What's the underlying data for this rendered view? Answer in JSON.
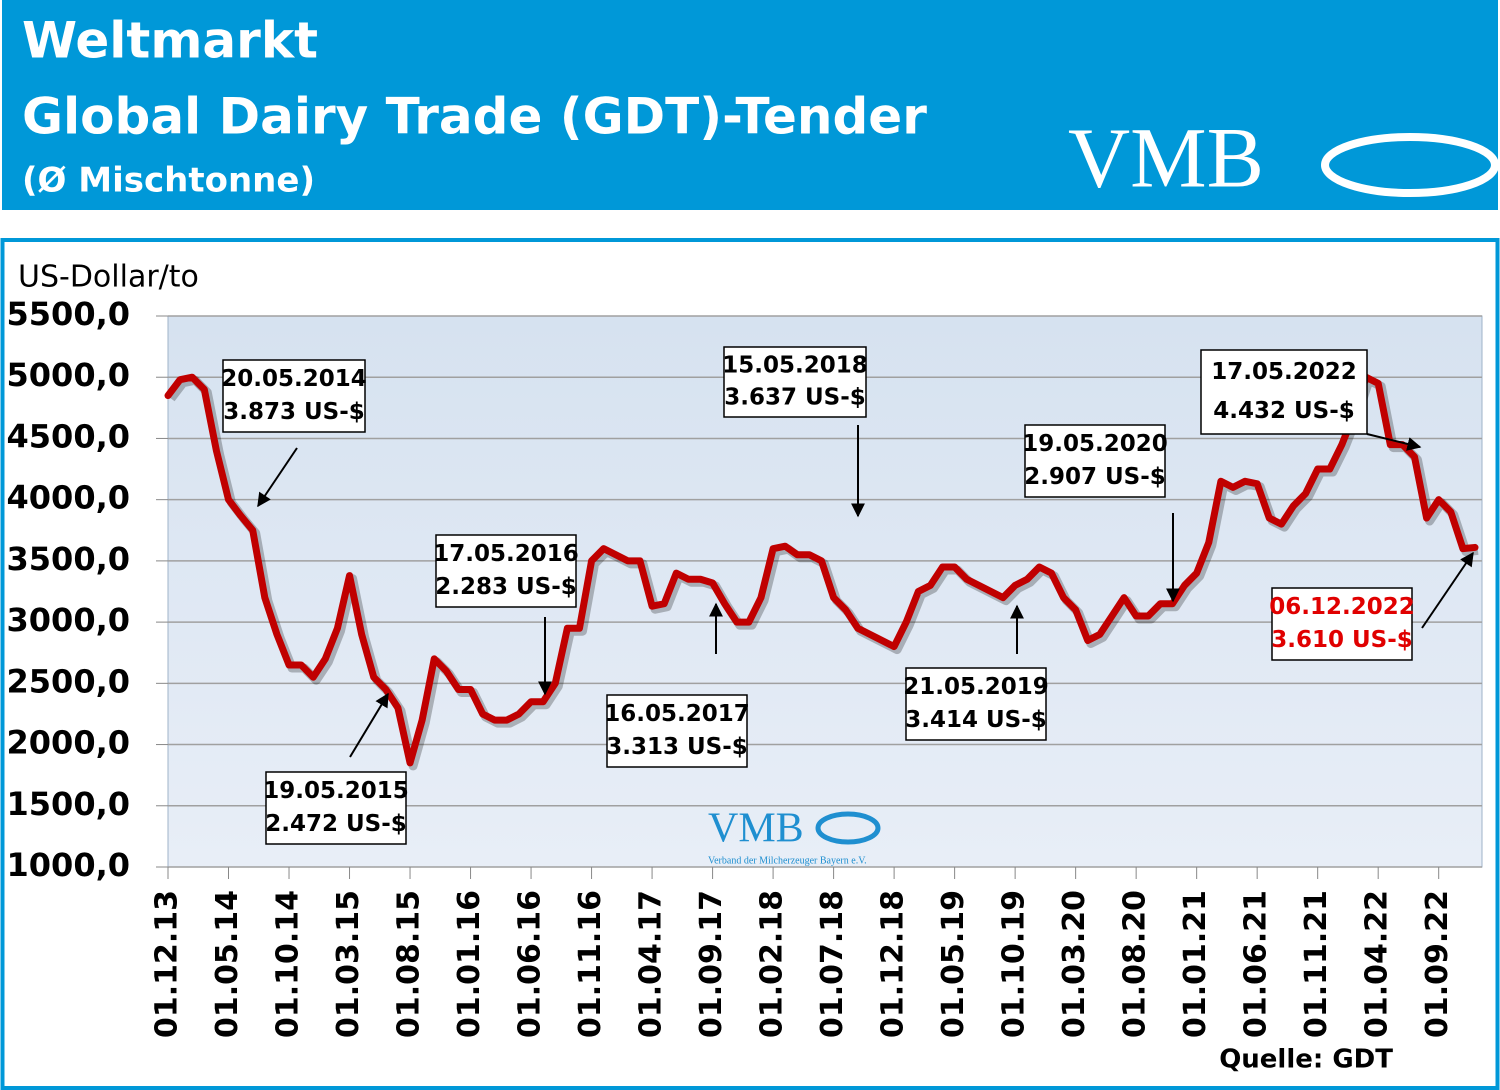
{
  "header": {
    "title": "Weltmarkt",
    "subtitle": "Global Dairy Trade (GDT)-Tender",
    "note": "(Ø Mischtonne)",
    "logo": "VMB"
  },
  "chart_data": {
    "type": "line",
    "y_label": "US-Dollar/to",
    "source": "Quelle: GDT",
    "watermark": {
      "logo": "VMB",
      "text": "Verband der Milcherzeuger Bayern e.V."
    },
    "categories": [
      "01.12.13",
      null,
      null,
      null,
      null,
      "01.05.14",
      null,
      null,
      null,
      null,
      "01.10.14",
      null,
      null,
      null,
      null,
      "01.03.15",
      null,
      null,
      null,
      null,
      "01.08.15",
      null,
      null,
      null,
      null,
      "01.01.16",
      null,
      null,
      null,
      null,
      "01.06.16",
      null,
      null,
      null,
      null,
      "01.11.16",
      null,
      null,
      null,
      null,
      "01.04.17",
      null,
      null,
      null,
      null,
      "01.09.17",
      null,
      null,
      null,
      null,
      "01.02.18",
      null,
      null,
      null,
      null,
      "01.07.18",
      null,
      null,
      null,
      null,
      "01.12.18",
      null,
      null,
      null,
      null,
      "01.05.19",
      null,
      null,
      null,
      null,
      "01.10.19",
      null,
      null,
      null,
      null,
      "01.03.20",
      null,
      null,
      null,
      null,
      "01.08.20",
      null,
      null,
      null,
      null,
      "01.01.21",
      null,
      null,
      null,
      null,
      "01.06.21",
      null,
      null,
      null,
      null,
      "01.11.21",
      null,
      null,
      null,
      null,
      "01.04.22",
      null,
      null,
      null,
      null,
      "01.09.22",
      null,
      null,
      null
    ],
    "series": [
      {
        "name": "GDT",
        "color": "#c00000",
        "values": [
          4850,
          4980,
          5000,
          4900,
          4400,
          4000,
          3870,
          3750,
          3200,
          2900,
          2650,
          2650,
          2550,
          2700,
          2950,
          3380,
          2900,
          2550,
          2450,
          2300,
          1850,
          2200,
          2700,
          2600,
          2450,
          2450,
          2250,
          2200,
          2200,
          2250,
          2350,
          2350,
          2500,
          2950,
          2950,
          3500,
          3600,
          3550,
          3500,
          3500,
          3130,
          3150,
          3400,
          3350,
          3350,
          3320,
          3150,
          3000,
          3000,
          3200,
          3600,
          3620,
          3550,
          3550,
          3500,
          3200,
          3100,
          2950,
          2900,
          2850,
          2800,
          3000,
          3250,
          3300,
          3450,
          3450,
          3350,
          3300,
          3250,
          3200,
          3300,
          3350,
          3450,
          3400,
          3200,
          3100,
          2850,
          2900,
          3050,
          3200,
          3050,
          3050,
          3150,
          3150,
          3300,
          3400,
          3650,
          4150,
          4100,
          4150,
          4130,
          3850,
          3800,
          3950,
          4050,
          4250,
          4250,
          4450,
          4700,
          5000,
          4950,
          4450,
          4450,
          4350,
          3850,
          4000,
          3900,
          3600,
          3610
        ]
      }
    ],
    "ylim": [
      1000,
      5500
    ],
    "yticks": [
      {
        "value": 1000,
        "label": "1000,0"
      },
      {
        "value": 1500,
        "label": "1500,0"
      },
      {
        "value": 2000,
        "label": "2000,0"
      },
      {
        "value": 2500,
        "label": "2500,0"
      },
      {
        "value": 3000,
        "label": "3000,0"
      },
      {
        "value": 3500,
        "label": "3500,0"
      },
      {
        "value": 4000,
        "label": "4000,0"
      },
      {
        "value": 4500,
        "label": "4500,0"
      },
      {
        "value": 5000,
        "label": "5000,0"
      },
      {
        "value": 5500,
        "label": "5500,0"
      }
    ],
    "grid": true,
    "annotations": [
      {
        "lines": [
          "20.05.2014",
          "3.873 US-$"
        ],
        "color": "#000000"
      },
      {
        "lines": [
          "19.05.2015",
          "2.472 US-$"
        ],
        "color": "#000000"
      },
      {
        "lines": [
          "17.05.2016",
          "2.283 US-$"
        ],
        "color": "#000000"
      },
      {
        "lines": [
          "16.05.2017",
          "3.313 US-$"
        ],
        "color": "#000000"
      },
      {
        "lines": [
          "15.05.2018",
          "3.637 US-$"
        ],
        "color": "#000000"
      },
      {
        "lines": [
          "21.05.2019",
          "3.414 US-$"
        ],
        "color": "#000000"
      },
      {
        "lines": [
          "19.05.2020",
          "2.907 US-$"
        ],
        "color": "#000000"
      },
      {
        "lines": [
          "17.05.2022",
          "4.432 US-$"
        ],
        "color": "#000000"
      },
      {
        "lines": [
          "06.12.2022",
          "3.610 US-$"
        ],
        "color": "#e00000"
      }
    ]
  }
}
